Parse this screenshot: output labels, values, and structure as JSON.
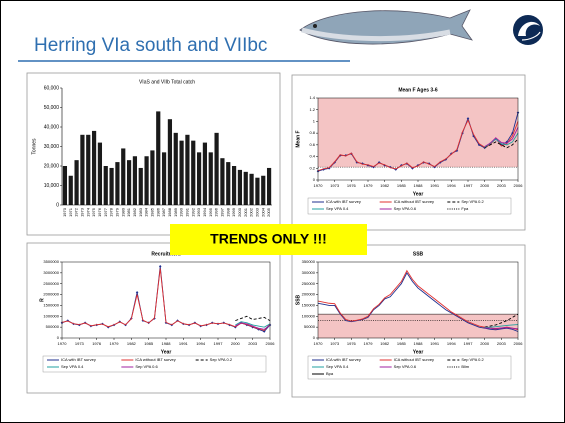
{
  "header": {
    "title": "Herring VIa south and VIIbc",
    "banner": "TRENDS ONLY !!!"
  },
  "chart_data": [
    {
      "type": "bar",
      "title": "VIaS and VIIb Total catch",
      "y_label": "Tonnes",
      "color": "#1a1a1a",
      "categories": [
        "1970",
        "1971",
        "1972",
        "1973",
        "1974",
        "1975",
        "1976",
        "1977",
        "1978",
        "1979",
        "1980",
        "1981",
        "1982",
        "1983",
        "1984",
        "1985",
        "1986",
        "1987",
        "1988",
        "1989",
        "1990",
        "1991",
        "1992",
        "1993",
        "1994",
        "1995",
        "1996",
        "1997",
        "1998",
        "1999",
        "2000",
        "2001",
        "2002",
        "2003",
        "2004",
        "2005"
      ],
      "values": [
        20000,
        15000,
        23000,
        36000,
        36000,
        38000,
        32000,
        20000,
        19000,
        22000,
        29000,
        23000,
        25000,
        19000,
        25000,
        28000,
        48000,
        27000,
        44000,
        37000,
        33000,
        36000,
        33000,
        27000,
        32000,
        27000,
        37000,
        24000,
        22000,
        20000,
        18000,
        17000,
        16000,
        14000,
        15000,
        19000
      ],
      "ylim": [
        0,
        60000
      ],
      "yticks": [
        0,
        {
          "value": 10000,
          "label": "10,000"
        },
        {
          "value": 20000,
          "label": "20,000"
        },
        {
          "value": 30000,
          "label": "30,000"
        },
        {
          "value": 40000,
          "label": "40,000"
        },
        {
          "value": 50000,
          "label": "50,000"
        },
        {
          "value": 60000,
          "label": "60,000"
        }
      ]
    },
    {
      "type": "line",
      "title": "Mean F Ages 3-6",
      "x_label": "Year",
      "y_label": "Mean F",
      "x": [
        1970,
        1971,
        1972,
        1973,
        1974,
        1975,
        1976,
        1977,
        1978,
        1979,
        1980,
        1981,
        1982,
        1983,
        1984,
        1985,
        1986,
        1987,
        1988,
        1989,
        1990,
        1991,
        1992,
        1993,
        1994,
        1995,
        1996,
        1997,
        1998,
        1999,
        2000,
        2001,
        2002,
        2003,
        2004,
        2005,
        2006
      ],
      "xlim": [
        1970,
        2006
      ],
      "xticks": [
        1970,
        1973,
        1976,
        1979,
        1982,
        1985,
        1988,
        1991,
        1994,
        1997,
        2000,
        2003,
        2006
      ],
      "ylim": [
        0,
        1.4
      ],
      "yticks": [
        0,
        0.2,
        0.4,
        0.6,
        0.8,
        1,
        1.2,
        1.4
      ],
      "series": [
        {
          "name": "ICA with IBT survey",
          "color": "#1f2f8f",
          "marker": true,
          "values": [
            0.15,
            0.18,
            0.2,
            0.3,
            0.42,
            0.42,
            0.45,
            0.3,
            0.28,
            0.25,
            0.22,
            0.3,
            0.25,
            0.22,
            0.18,
            0.25,
            0.28,
            0.2,
            0.25,
            0.3,
            0.28,
            0.22,
            0.3,
            0.35,
            0.45,
            0.5,
            0.8,
            1.05,
            0.75,
            0.6,
            0.55,
            0.62,
            0.7,
            0.6,
            0.65,
            0.8,
            1.15
          ]
        },
        {
          "name": "ICA without IBT survey",
          "color": "#e03030",
          "values": [
            0.16,
            0.19,
            0.21,
            0.31,
            0.43,
            0.41,
            0.46,
            0.31,
            0.27,
            0.26,
            0.23,
            0.29,
            0.26,
            0.21,
            0.19,
            0.24,
            0.29,
            0.21,
            0.24,
            0.31,
            0.27,
            0.23,
            0.31,
            0.36,
            0.44,
            0.52,
            0.82,
            1.02,
            0.78,
            0.62,
            0.56,
            0.6,
            0.72,
            0.58,
            0.62,
            0.75,
            1.0
          ]
        },
        {
          "name": "Sep VPA 0.2",
          "color": "#000000",
          "style": "dashed",
          "values": [
            null,
            null,
            null,
            null,
            null,
            null,
            null,
            null,
            null,
            null,
            null,
            null,
            null,
            null,
            null,
            null,
            null,
            null,
            null,
            null,
            null,
            null,
            null,
            null,
            null,
            null,
            null,
            null,
            null,
            null,
            0.55,
            0.6,
            0.65,
            0.6,
            0.55,
            0.6,
            0.7
          ]
        },
        {
          "name": "Sep VPA 0.4",
          "color": "#20a0a0",
          "values": [
            null,
            null,
            null,
            null,
            null,
            null,
            null,
            null,
            null,
            null,
            null,
            null,
            null,
            null,
            null,
            null,
            null,
            null,
            null,
            null,
            null,
            null,
            null,
            null,
            null,
            null,
            null,
            null,
            null,
            null,
            0.56,
            0.62,
            0.7,
            0.62,
            0.6,
            0.65,
            0.8
          ]
        },
        {
          "name": "Sep VPA 0.6",
          "color": "#a020a0",
          "values": [
            null,
            null,
            null,
            null,
            null,
            null,
            null,
            null,
            null,
            null,
            null,
            null,
            null,
            null,
            null,
            null,
            null,
            null,
            null,
            null,
            null,
            null,
            null,
            null,
            null,
            null,
            null,
            null,
            null,
            null,
            0.57,
            0.63,
            0.72,
            0.64,
            0.63,
            0.7,
            0.9
          ]
        }
      ],
      "reference_lines": [
        {
          "name": "Fpa",
          "value": 0.22,
          "style": "dotted",
          "shade": "above"
        }
      ]
    },
    {
      "type": "line",
      "title": "Recruitment",
      "x_label": "Year",
      "y_label": "R",
      "x": [
        1970,
        1971,
        1972,
        1973,
        1974,
        1975,
        1976,
        1977,
        1978,
        1979,
        1980,
        1981,
        1982,
        1983,
        1984,
        1985,
        1986,
        1987,
        1988,
        1989,
        1990,
        1991,
        1992,
        1993,
        1994,
        1995,
        1996,
        1997,
        1998,
        1999,
        2000,
        2001,
        2002,
        2003,
        2004,
        2005,
        2006
      ],
      "xlim": [
        1970,
        2006
      ],
      "xticks": [
        1970,
        1973,
        1976,
        1979,
        1982,
        1985,
        1988,
        1991,
        1994,
        1997,
        2000,
        2003,
        2006
      ],
      "ylim": [
        0,
        3500000
      ],
      "yticks": [
        0,
        500000,
        1000000,
        1500000,
        2000000,
        2500000,
        3000000,
        3500000
      ],
      "series": [
        {
          "name": "ICA with IBT survey",
          "color": "#1f2f8f",
          "marker": true,
          "values": [
            700000,
            800000,
            650000,
            600000,
            700000,
            550000,
            600000,
            650000,
            500000,
            600000,
            750000,
            600000,
            900000,
            2100000,
            800000,
            700000,
            900000,
            3300000,
            700000,
            600000,
            800000,
            650000,
            600000,
            700000,
            550000,
            600000,
            700000,
            650000,
            700000,
            600000,
            500000,
            700000,
            600000,
            500000,
            400000,
            300000,
            600000
          ]
        },
        {
          "name": "ICA without IBT survey",
          "color": "#e03030",
          "values": [
            720000,
            780000,
            660000,
            620000,
            690000,
            560000,
            610000,
            640000,
            520000,
            610000,
            740000,
            610000,
            880000,
            2000000,
            820000,
            690000,
            920000,
            3200000,
            720000,
            610000,
            790000,
            660000,
            610000,
            690000,
            560000,
            610000,
            690000,
            660000,
            690000,
            620000,
            520000,
            680000,
            620000,
            520000,
            420000,
            350000,
            650000
          ]
        },
        {
          "name": "Sep VPA 0.2",
          "color": "#000000",
          "style": "dashed",
          "values": [
            null,
            null,
            null,
            null,
            null,
            null,
            null,
            null,
            null,
            null,
            null,
            null,
            null,
            null,
            null,
            null,
            null,
            null,
            null,
            null,
            null,
            null,
            null,
            null,
            null,
            null,
            null,
            null,
            null,
            null,
            800000,
            900000,
            1000000,
            850000,
            900000,
            950000,
            800000
          ]
        },
        {
          "name": "Sep VPA 0.4",
          "color": "#20a0a0",
          "values": [
            null,
            null,
            null,
            null,
            null,
            null,
            null,
            null,
            null,
            null,
            null,
            null,
            null,
            null,
            null,
            null,
            null,
            null,
            null,
            null,
            null,
            null,
            null,
            null,
            null,
            null,
            null,
            null,
            null,
            null,
            600000,
            750000,
            700000,
            600000,
            550000,
            500000,
            650000
          ]
        },
        {
          "name": "Sep VPA 0.6",
          "color": "#a020a0",
          "values": [
            null,
            null,
            null,
            null,
            null,
            null,
            null,
            null,
            null,
            null,
            null,
            null,
            null,
            null,
            null,
            null,
            null,
            null,
            null,
            null,
            null,
            null,
            null,
            null,
            null,
            null,
            null,
            null,
            null,
            null,
            550000,
            700000,
            650000,
            550000,
            450000,
            400000,
            600000
          ]
        }
      ]
    },
    {
      "type": "line",
      "title": "SSB",
      "x_label": "Year",
      "y_label": "SSB",
      "x": [
        1970,
        1971,
        1972,
        1973,
        1974,
        1975,
        1976,
        1977,
        1978,
        1979,
        1980,
        1981,
        1982,
        1983,
        1984,
        1985,
        1986,
        1987,
        1988,
        1989,
        1990,
        1991,
        1992,
        1993,
        1994,
        1995,
        1996,
        1997,
        1998,
        1999,
        2000,
        2001,
        2002,
        2003,
        2004,
        2005,
        2006
      ],
      "xlim": [
        1970,
        2006
      ],
      "xticks": [
        1970,
        1973,
        1976,
        1979,
        1982,
        1985,
        1988,
        1991,
        1994,
        1997,
        2000,
        2003,
        2006
      ],
      "ylim": [
        0,
        350000
      ],
      "yticks": [
        0,
        50000,
        100000,
        150000,
        200000,
        250000,
        300000,
        350000
      ],
      "series": [
        {
          "name": "ICA with IBT survey",
          "color": "#1f2f8f",
          "values": [
            160000,
            155000,
            150000,
            150000,
            110000,
            80000,
            75000,
            80000,
            85000,
            95000,
            130000,
            150000,
            180000,
            190000,
            220000,
            250000,
            300000,
            260000,
            230000,
            210000,
            190000,
            170000,
            150000,
            130000,
            115000,
            100000,
            85000,
            70000,
            60000,
            50000,
            45000,
            40000,
            38000,
            42000,
            45000,
            40000,
            30000
          ]
        },
        {
          "name": "ICA without IBT survey",
          "color": "#e03030",
          "values": [
            170000,
            165000,
            160000,
            158000,
            115000,
            85000,
            78000,
            82000,
            88000,
            100000,
            135000,
            155000,
            185000,
            200000,
            230000,
            260000,
            310000,
            270000,
            240000,
            220000,
            200000,
            180000,
            160000,
            140000,
            120000,
            105000,
            90000,
            75000,
            65000,
            55000,
            50000,
            45000,
            42000,
            46000,
            50000,
            45000,
            38000
          ]
        },
        {
          "name": "Sep VPA 0.2",
          "color": "#000000",
          "style": "dashed",
          "values": [
            null,
            null,
            null,
            null,
            null,
            null,
            null,
            null,
            null,
            null,
            null,
            null,
            null,
            null,
            null,
            null,
            null,
            null,
            null,
            null,
            null,
            null,
            null,
            null,
            null,
            null,
            null,
            null,
            null,
            null,
            50000,
            55000,
            60000,
            70000,
            80000,
            95000,
            110000
          ]
        },
        {
          "name": "Sep VPA 0.4",
          "color": "#20a0a0",
          "values": [
            null,
            null,
            null,
            null,
            null,
            null,
            null,
            null,
            null,
            null,
            null,
            null,
            null,
            null,
            null,
            null,
            null,
            null,
            null,
            null,
            null,
            null,
            null,
            null,
            null,
            null,
            null,
            null,
            null,
            null,
            48000,
            50000,
            52000,
            55000,
            58000,
            60000,
            62000
          ]
        },
        {
          "name": "Sep VPA 0.6",
          "color": "#a020a0",
          "values": [
            null,
            null,
            null,
            null,
            null,
            null,
            null,
            null,
            null,
            null,
            null,
            null,
            null,
            null,
            null,
            null,
            null,
            null,
            null,
            null,
            null,
            null,
            null,
            null,
            null,
            null,
            null,
            null,
            null,
            null,
            46000,
            45000,
            44000,
            46000,
            48000,
            45000,
            42000
          ]
        }
      ],
      "reference_lines": [
        {
          "name": "Blim",
          "value": 81000,
          "style": "dotted"
        },
        {
          "name": "Bpa",
          "value": 110000,
          "style": "solid",
          "shade": "below"
        }
      ]
    }
  ]
}
